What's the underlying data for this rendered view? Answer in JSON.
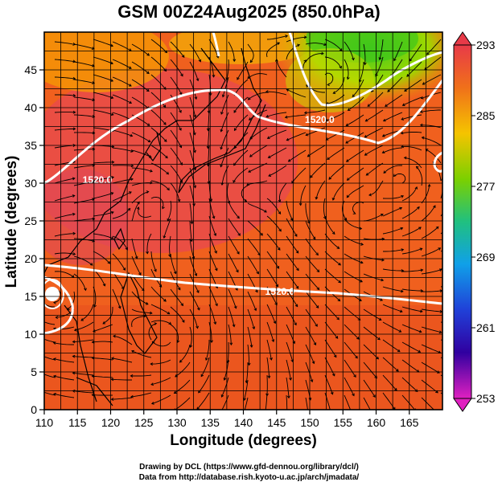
{
  "title": "GSM 00Z24Aug2025 (850.0hPa)",
  "credits": {
    "line1": "Drawing by DCL (https://www.gfd-dennou.org/library/dcl/)",
    "line2": "Data from http://database.rish.kyoto-u.ac.jp/arch/jmadata/"
  },
  "axes": {
    "xlabel": "Longitude (degrees)",
    "ylabel": "Latitude (degrees)",
    "xlim": [
      110,
      170
    ],
    "ylim": [
      0,
      50
    ],
    "xticks": [
      "110",
      "115",
      "120",
      "125",
      "130",
      "135",
      "140",
      "145",
      "150",
      "155",
      "160",
      "165"
    ],
    "yticks": [
      "0",
      "5",
      "10",
      "15",
      "20",
      "25",
      "30",
      "35",
      "40",
      "45"
    ]
  },
  "colorbar": {
    "ticks": [
      "293",
      "285",
      "277",
      "269",
      "261",
      "253"
    ],
    "range": [
      253,
      293
    ]
  },
  "contour_labels": [
    {
      "text": "1520.0",
      "lon": 151.5,
      "lat": 38.0
    },
    {
      "text": "1520.0",
      "lon": 145.5,
      "lat": 15.2
    },
    {
      "text": "1520.0",
      "lon": 118.0,
      "lat": 30.0
    }
  ],
  "colors": {
    "warm_base": "#f26a1b",
    "hot": "#e84850",
    "cool_green": "#3ec61a",
    "yellow": "#f5d800"
  }
}
